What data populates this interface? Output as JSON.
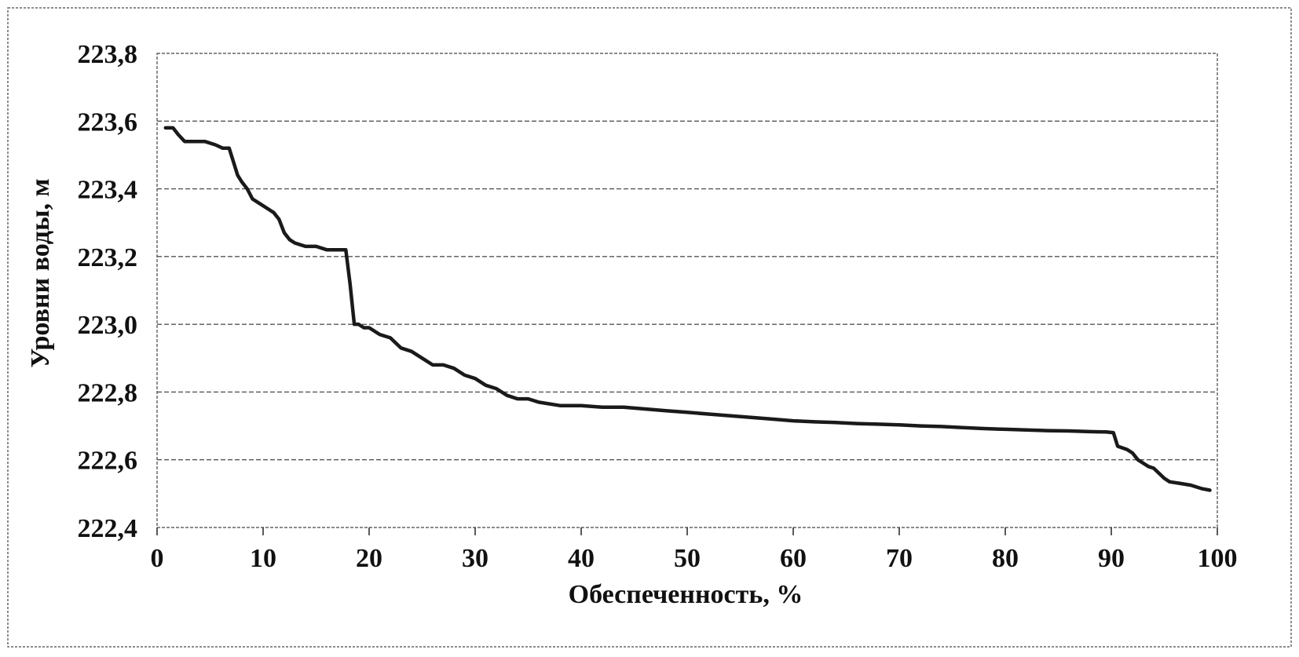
{
  "chart_data": {
    "type": "line",
    "title": "",
    "xlabel": "Обеспеченность, %",
    "ylabel": "Уровни воды, м",
    "xlim": [
      0,
      100
    ],
    "ylim": [
      222.4,
      223.8
    ],
    "x_ticks": [
      0,
      10,
      20,
      30,
      40,
      50,
      60,
      70,
      80,
      90,
      100
    ],
    "y_ticks": [
      222.4,
      222.6,
      222.8,
      223.0,
      223.2,
      223.4,
      223.6,
      223.8
    ],
    "x_tick_labels": [
      "0",
      "10",
      "20",
      "30",
      "40",
      "50",
      "60",
      "70",
      "80",
      "90",
      "100"
    ],
    "y_tick_labels": [
      "222,4",
      "222,6",
      "222,8",
      "223,0",
      "223,2",
      "223,4",
      "223,6",
      "223,8"
    ],
    "grid": "horizontal dashed",
    "legend": "none",
    "colors": {
      "line": "#1a1a1a",
      "grid": "#555555",
      "frame": "#444444",
      "background": "#ffffff"
    },
    "series": [
      {
        "x": [
          0.8,
          1.5,
          2.0,
          2.6,
          3.0,
          4.5,
          5.5,
          6.2,
          6.8,
          7.2,
          7.6,
          8.0,
          8.5,
          9.0,
          9.5,
          10.5,
          11.0,
          11.5,
          12.0,
          12.5,
          13.0,
          14.0,
          15.0,
          16.0,
          17.0,
          17.8,
          18.2,
          18.6,
          19.0,
          19.5,
          20.0,
          21.0,
          22.0,
          23.0,
          24.0,
          25.0,
          26.0,
          27.0,
          28.0,
          29.0,
          30.0,
          31.0,
          32.0,
          33.0,
          34.0,
          35.0,
          36.0,
          38.0,
          40.0,
          42.0,
          44.0,
          46.0,
          48.0,
          50.0,
          52.0,
          54.0,
          56.0,
          58.0,
          60.0,
          62.0,
          64.0,
          66.0,
          68.0,
          70.0,
          72.0,
          74.0,
          76.0,
          78.0,
          80.0,
          82.0,
          84.0,
          86.0,
          88.0,
          89.5,
          90.2,
          90.6,
          91.5,
          92.0,
          92.5,
          93.0,
          93.5,
          94.0,
          94.5,
          95.0,
          95.5,
          96.5,
          97.5,
          98.5,
          99.3
        ],
        "y": [
          223.58,
          223.58,
          223.56,
          223.54,
          223.54,
          223.54,
          223.53,
          223.52,
          223.52,
          223.48,
          223.44,
          223.42,
          223.4,
          223.37,
          223.36,
          223.34,
          223.33,
          223.31,
          223.27,
          223.25,
          223.24,
          223.23,
          223.23,
          223.22,
          223.22,
          223.22,
          223.12,
          223.0,
          223.0,
          222.99,
          222.99,
          222.97,
          222.96,
          222.93,
          222.92,
          222.9,
          222.88,
          222.88,
          222.87,
          222.85,
          222.84,
          222.82,
          222.81,
          222.79,
          222.78,
          222.78,
          222.77,
          222.76,
          222.76,
          222.755,
          222.755,
          222.75,
          222.745,
          222.74,
          222.735,
          222.73,
          222.725,
          222.72,
          222.715,
          222.712,
          222.71,
          222.707,
          222.705,
          222.703,
          222.7,
          222.698,
          222.695,
          222.692,
          222.69,
          222.688,
          222.686,
          222.685,
          222.683,
          222.682,
          222.68,
          222.64,
          222.63,
          222.62,
          222.6,
          222.59,
          222.58,
          222.575,
          222.56,
          222.545,
          222.535,
          222.53,
          222.525,
          222.515,
          222.51
        ]
      }
    ]
  }
}
